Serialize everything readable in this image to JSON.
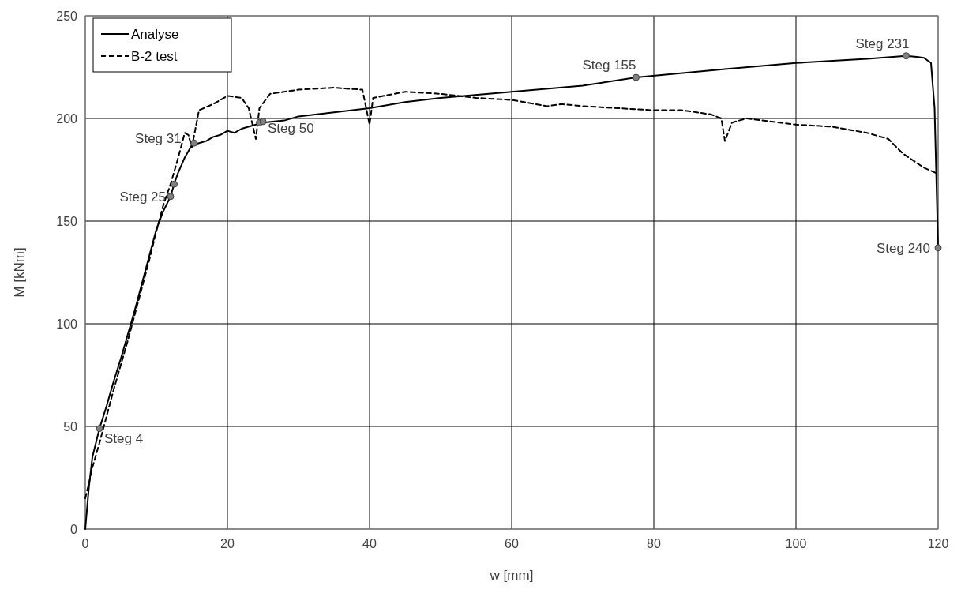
{
  "chart_data": {
    "type": "line",
    "xlabel": "w [mm]",
    "ylabel": "M [kNm]",
    "xlim": [
      0,
      120
    ],
    "xticks": [
      0,
      20,
      40,
      60,
      80,
      100,
      120
    ],
    "ylim": [
      0,
      250
    ],
    "yticks": [
      0,
      50,
      100,
      150,
      200,
      250
    ],
    "grid": true,
    "legend": "top left",
    "series": [
      {
        "name": "Analyse",
        "color": "#000000",
        "line_style": "solid",
        "x": [
          0,
          0.5,
          1,
          2,
          3,
          4,
          5,
          6,
          7,
          8,
          9,
          10,
          11,
          12,
          12.5,
          13,
          14,
          15,
          16,
          17,
          18,
          19,
          20,
          21,
          22,
          24,
          25,
          28,
          30,
          35,
          40,
          45,
          50,
          60,
          70,
          77.5,
          90,
          100,
          110,
          115.5,
          117,
          118,
          119,
          119.5,
          120
        ],
        "values": [
          0,
          20,
          35,
          49,
          60,
          72,
          83,
          95,
          107,
          120,
          133,
          146,
          155,
          162,
          168,
          173,
          181,
          187,
          188,
          189,
          191,
          192,
          194,
          193,
          195,
          197,
          198,
          199,
          201,
          203,
          205,
          208,
          210,
          213,
          216,
          220,
          224,
          227,
          229,
          230.5,
          230,
          229.5,
          227,
          205,
          137
        ]
      },
      {
        "name": "B-2 test",
        "color": "#000000",
        "line_style": "dashed",
        "x": [
          0,
          0.5,
          1,
          2,
          3,
          4,
          5,
          6,
          7,
          8,
          9,
          10,
          11,
          12,
          13,
          14,
          14.5,
          15,
          15.5,
          16,
          18,
          20,
          22,
          23,
          24,
          24.5,
          26,
          30,
          35,
          39,
          40,
          40.5,
          45,
          50,
          55,
          60,
          65,
          67,
          70,
          75,
          80,
          84,
          88,
          89.5,
          90,
          91,
          93,
          100,
          105,
          110,
          113,
          115,
          118,
          120
        ],
        "values": [
          15,
          22,
          30,
          42,
          55,
          68,
          80,
          92,
          105,
          118,
          131,
          145,
          158,
          168,
          180,
          193,
          192,
          186,
          195,
          204,
          207,
          211,
          210,
          205,
          190,
          205,
          212,
          214,
          215,
          214,
          197,
          210,
          213,
          212,
          210,
          209,
          206,
          207,
          206,
          205,
          204,
          204,
          202,
          200,
          189,
          198,
          200,
          197,
          196,
          193,
          190,
          183,
          176,
          173
        ]
      },
      {
        "type": "scatter",
        "color": "#808080",
        "marker": "circle",
        "x": [
          2,
          12,
          12.5,
          15.3,
          24.5,
          25,
          77.5,
          115.5,
          120
        ],
        "values": [
          49,
          162,
          168,
          188,
          198,
          198.5,
          220,
          230.5,
          137
        ]
      }
    ],
    "annotations": [
      {
        "text": "Steg 4",
        "x": 2,
        "y": 49
      },
      {
        "text": "Steg 25",
        "x": 12,
        "y": 162
      },
      {
        "text": "Steg 31",
        "x": 15.3,
        "y": 188
      },
      {
        "text": "Steg 50",
        "x": 25,
        "y": 198.5
      },
      {
        "text": "Steg 155",
        "x": 77.5,
        "y": 220
      },
      {
        "text": "Steg 231",
        "x": 115.5,
        "y": 230.5
      },
      {
        "text": "Steg 240",
        "x": 120,
        "y": 137
      }
    ]
  }
}
